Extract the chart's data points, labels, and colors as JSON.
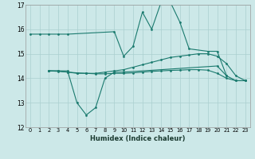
{
  "xlabel": "Humidex (Indice chaleur)",
  "bg_color": "#cce8e8",
  "grid_color": "#aacfcf",
  "line_color": "#1a7a6e",
  "xlim": [
    -0.5,
    23.5
  ],
  "ylim": [
    12,
    17
  ],
  "xticks": [
    0,
    1,
    2,
    3,
    4,
    5,
    6,
    7,
    8,
    9,
    10,
    11,
    12,
    13,
    14,
    15,
    16,
    17,
    18,
    19,
    20,
    21,
    22,
    23
  ],
  "yticks": [
    12,
    13,
    14,
    15,
    16,
    17
  ],
  "series": [
    {
      "x": [
        0,
        1,
        2,
        3,
        4,
        9,
        10,
        11,
        12,
        13,
        14,
        15,
        16,
        17,
        19,
        20,
        21
      ],
      "y": [
        15.8,
        15.8,
        15.8,
        15.8,
        15.8,
        15.9,
        14.9,
        15.3,
        16.7,
        16.0,
        17.1,
        17.1,
        16.3,
        15.2,
        15.1,
        15.1,
        14.1
      ]
    },
    {
      "x": [
        2,
        3,
        4,
        5,
        6,
        7,
        8,
        9,
        10,
        20,
        21,
        22,
        23
      ],
      "y": [
        14.3,
        14.3,
        14.3,
        13.0,
        12.5,
        12.8,
        14.0,
        14.25,
        14.25,
        14.5,
        14.1,
        13.9,
        13.9
      ]
    },
    {
      "x": [
        2,
        3,
        4,
        5,
        6,
        7,
        8,
        9,
        10,
        11,
        12,
        13,
        14,
        15,
        16,
        17,
        18,
        19,
        20,
        21,
        22,
        23
      ],
      "y": [
        14.3,
        14.3,
        14.25,
        14.2,
        14.2,
        14.2,
        14.25,
        14.3,
        14.35,
        14.45,
        14.55,
        14.65,
        14.75,
        14.85,
        14.9,
        14.95,
        15.0,
        15.0,
        14.9,
        14.6,
        14.1,
        13.9
      ]
    },
    {
      "x": [
        2,
        3,
        4,
        5,
        6,
        7,
        8,
        9,
        10,
        11,
        12,
        13,
        14,
        15,
        16,
        17,
        18,
        19,
        20,
        21,
        22,
        23
      ],
      "y": [
        14.3,
        14.28,
        14.25,
        14.22,
        14.2,
        14.18,
        14.18,
        14.2,
        14.2,
        14.22,
        14.25,
        14.28,
        14.3,
        14.32,
        14.33,
        14.35,
        14.35,
        14.33,
        14.2,
        14.0,
        13.9,
        13.9
      ]
    }
  ]
}
